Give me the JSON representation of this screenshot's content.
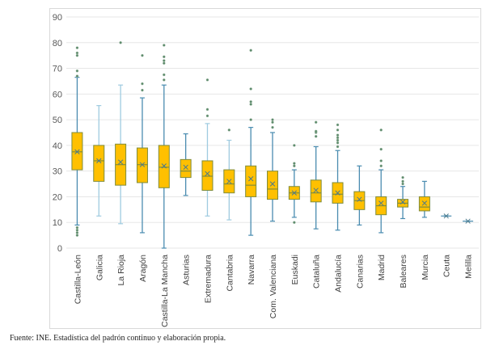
{
  "chart_data": {
    "type": "box",
    "title": "",
    "xlabel": "",
    "ylabel": "",
    "ylim": [
      0,
      90
    ],
    "yticks": [
      0,
      10,
      20,
      30,
      40,
      50,
      60,
      70,
      80,
      90
    ],
    "grid": true,
    "legend": "none",
    "colors": {
      "box_fill": "#ffc000",
      "box_edge": "#7f8c3c",
      "whisker": "#4a8cb0",
      "whisker_light": "#9fcbe0",
      "outlier": "#5b8a6a",
      "mean_marker": "#4a7a8c",
      "grid": "#e7e7e7"
    },
    "categories": [
      "Castilla-León",
      "Galicia",
      "La Rioja",
      "Aragón",
      "Castilla-La Mancha",
      "Asturias",
      "Extremadura",
      "Cantabria",
      "Navarra",
      "Com. Valenciana",
      "Euskadi",
      "Cataluña",
      "Andalucía",
      "Canarias",
      "Madrid",
      "Baleares",
      "Murcia",
      "Ceuta",
      "Melilla"
    ],
    "series": [
      {
        "name": "Castilla-León",
        "q1": 30.5,
        "median": 37.5,
        "q3": 45,
        "mean": 37.5,
        "whisker_low": 9,
        "whisker_high": 66.5,
        "outliers": [
          67,
          69,
          75,
          76,
          78,
          5,
          6,
          7,
          8
        ]
      },
      {
        "name": "Galicia",
        "q1": 26,
        "median": 34,
        "q3": 40,
        "mean": 34,
        "whisker_low": 12.5,
        "whisker_high": 55.5,
        "outliers": []
      },
      {
        "name": "La Rioja",
        "q1": 24.5,
        "median": 32.5,
        "q3": 40.5,
        "mean": 33.5,
        "whisker_low": 9.5,
        "whisker_high": 63.5,
        "outliers": [
          80
        ]
      },
      {
        "name": "Aragón",
        "q1": 25.5,
        "median": 32.5,
        "q3": 39,
        "mean": 32.5,
        "whisker_low": 6,
        "whisker_high": 58.5,
        "outliers": [
          61.5,
          64,
          75
        ]
      },
      {
        "name": "Castilla-La Mancha",
        "q1": 23.5,
        "median": 31.5,
        "q3": 40,
        "mean": 32,
        "whisker_low": 0,
        "whisker_high": 63.5,
        "outliers": [
          65.5,
          67.5,
          72,
          73,
          74.5,
          79
        ]
      },
      {
        "name": "Asturias",
        "q1": 27.5,
        "median": 30,
        "q3": 34.5,
        "mean": 31.5,
        "whisker_low": 20.5,
        "whisker_high": 44.5,
        "outliers": []
      },
      {
        "name": "Extremadura",
        "q1": 22.5,
        "median": 28,
        "q3": 34,
        "mean": 29,
        "whisker_low": 12.5,
        "whisker_high": 48.5,
        "outliers": [
          51.5,
          54,
          65.5
        ]
      },
      {
        "name": "Cantabria",
        "q1": 21.5,
        "median": 25,
        "q3": 30.5,
        "mean": 26,
        "whisker_low": 11,
        "whisker_high": 42,
        "outliers": [
          46
        ]
      },
      {
        "name": "Navarra",
        "q1": 20,
        "median": 24.5,
        "q3": 32,
        "mean": 27,
        "whisker_low": 5,
        "whisker_high": 47,
        "outliers": [
          50,
          56,
          57,
          62,
          77
        ]
      },
      {
        "name": "Com. Valenciana",
        "q1": 19,
        "median": 23,
        "q3": 30,
        "mean": 25,
        "whisker_low": 10.5,
        "whisker_high": 45,
        "outliers": [
          47,
          49,
          50
        ]
      },
      {
        "name": "Euskadi",
        "q1": 19,
        "median": 21.5,
        "q3": 24,
        "mean": 21.5,
        "whisker_low": 12,
        "whisker_high": 30.5,
        "outliers": [
          10,
          32,
          33,
          40
        ]
      },
      {
        "name": "Cataluña",
        "q1": 18,
        "median": 21.5,
        "q3": 26.5,
        "mean": 22.5,
        "whisker_low": 7.5,
        "whisker_high": 39.5,
        "outliers": [
          43.5,
          45,
          45.5,
          49
        ]
      },
      {
        "name": "Andalucía",
        "q1": 17.5,
        "median": 21,
        "q3": 25.5,
        "mean": 21.5,
        "whisker_low": 7,
        "whisker_high": 38,
        "outliers": [
          39.5,
          41,
          42,
          43,
          44,
          46,
          48
        ]
      },
      {
        "name": "Canarias",
        "q1": 15,
        "median": 18.5,
        "q3": 22,
        "mean": 19,
        "whisker_low": 9,
        "whisker_high": 32,
        "outliers": []
      },
      {
        "name": "Madrid",
        "q1": 13,
        "median": 16.5,
        "q3": 20,
        "mean": 17.5,
        "whisker_low": 6,
        "whisker_high": 30.5,
        "outliers": [
          32,
          34,
          38.5,
          46
        ]
      },
      {
        "name": "Baleares",
        "q1": 16,
        "median": 17.5,
        "q3": 19,
        "mean": 18,
        "whisker_low": 11.5,
        "whisker_high": 24,
        "outliers": [
          25,
          26,
          27.5
        ]
      },
      {
        "name": "Murcia",
        "q1": 14.5,
        "median": 16,
        "q3": 20,
        "mean": 17.5,
        "whisker_low": 12,
        "whisker_high": 26,
        "outliers": []
      },
      {
        "name": "Ceuta",
        "q1": 12.5,
        "median": 12.5,
        "q3": 12.5,
        "mean": 12.5,
        "whisker_low": 12.5,
        "whisker_high": 12.5,
        "outliers": []
      },
      {
        "name": "Melilla",
        "q1": 10.5,
        "median": 10.5,
        "q3": 10.5,
        "mean": 10.5,
        "whisker_low": 10.5,
        "whisker_high": 10.5,
        "outliers": []
      }
    ]
  },
  "source_note": "Fuente: INE. Estadística del padrón continuo y elaboración propia."
}
